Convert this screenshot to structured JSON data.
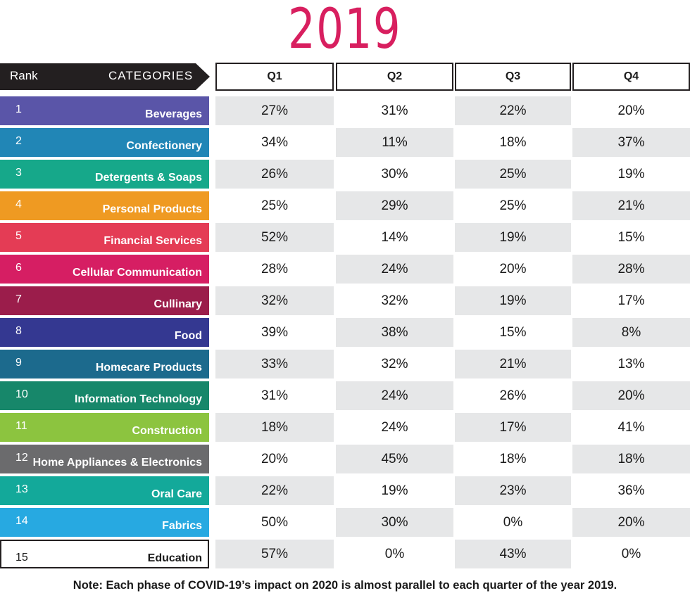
{
  "chart_data": {
    "type": "table",
    "title": "2019",
    "rank_header": "Rank",
    "category_header": "CATEGORIES",
    "columns": [
      "Q1",
      "Q2",
      "Q3",
      "Q4"
    ],
    "rows": [
      {
        "rank": "1",
        "category": "Beverages",
        "color": "#5a55a8",
        "values": [
          "27%",
          "31%",
          "22%",
          "20%"
        ]
      },
      {
        "rank": "2",
        "category": "Confectionery",
        "color": "#2186b6",
        "values": [
          "34%",
          "11%",
          "18%",
          "37%"
        ]
      },
      {
        "rank": "3",
        "category": "Detergents & Soaps",
        "color": "#16a88a",
        "values": [
          "26%",
          "30%",
          "25%",
          "19%"
        ]
      },
      {
        "rank": "4",
        "category": "Personal Products",
        "color": "#ef9a22",
        "values": [
          "25%",
          "29%",
          "25%",
          "21%"
        ]
      },
      {
        "rank": "5",
        "category": "Financial Services",
        "color": "#e43c55",
        "values": [
          "52%",
          "14%",
          "19%",
          "15%"
        ]
      },
      {
        "rank": "6",
        "category": "Cellular Communication",
        "color": "#d61e63",
        "values": [
          "28%",
          "24%",
          "20%",
          "28%"
        ]
      },
      {
        "rank": "7",
        "category": "Cullinary",
        "color": "#9b1d4b",
        "values": [
          "32%",
          "32%",
          "19%",
          "17%"
        ]
      },
      {
        "rank": "8",
        "category": "Food",
        "color": "#343891",
        "values": [
          "39%",
          "38%",
          "15%",
          "8%"
        ]
      },
      {
        "rank": "9",
        "category": "Homecare Products",
        "color": "#1c6a8d",
        "values": [
          "33%",
          "32%",
          "21%",
          "13%"
        ]
      },
      {
        "rank": "10",
        "category": "Information Technology",
        "color": "#17876a",
        "values": [
          "31%",
          "24%",
          "26%",
          "20%"
        ]
      },
      {
        "rank": "11",
        "category": "Construction",
        "color": "#8cc43f",
        "values": [
          "18%",
          "24%",
          "17%",
          "41%"
        ]
      },
      {
        "rank": "12",
        "category": "Home Appliances & Electronics",
        "color": "#6b6b6d",
        "values": [
          "20%",
          "45%",
          "18%",
          "18%"
        ]
      },
      {
        "rank": "13",
        "category": "Oral Care",
        "color": "#13a99a",
        "values": [
          "22%",
          "19%",
          "23%",
          "36%"
        ]
      },
      {
        "rank": "14",
        "category": "Fabrics",
        "color": "#27a9e1",
        "values": [
          "50%",
          "30%",
          "0%",
          "20%"
        ]
      },
      {
        "rank": "15",
        "category": "Education",
        "color": "#ffffff",
        "values": [
          "57%",
          "0%",
          "43%",
          "0%"
        ]
      }
    ]
  },
  "note": "Note:  Each phase of COVID-19’s impact on 2020 is almost parallel to each quarter of the year 2019.",
  "colors": {
    "title": "#d81f5f",
    "header_dark": "#231f20",
    "cell_shade": "#e6e7e8"
  }
}
